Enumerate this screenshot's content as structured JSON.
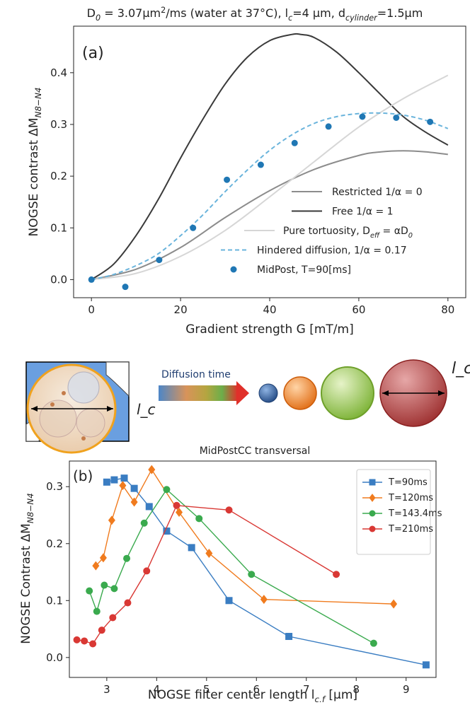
{
  "chart_data": [
    {
      "id": "a",
      "type": "line",
      "title": "D₀ = 3.07μm²/ms (water at 37°C), l_c=4 μm, d_cylinder=1.5μm",
      "panel_label": "(a)",
      "xlabel": "Gradient strength G [mT/m]",
      "ylabel": "NOGSE contrast ΔM_{N8−N4}",
      "xlim": [
        -4,
        84
      ],
      "ylim": [
        -0.035,
        0.49
      ],
      "xticks": [
        "0",
        "20",
        "40",
        "60",
        "80"
      ],
      "yticks": [
        "0.0",
        "0.1",
        "0.2",
        "0.3",
        "0.4"
      ],
      "legend_position": "lower right",
      "series": [
        {
          "name": "Restricted 1/α = 0",
          "color": "#8c8c8c",
          "style": "solid",
          "x": [
            0,
            10,
            20,
            30,
            40,
            50,
            60,
            65,
            70,
            75,
            80
          ],
          "y": [
            0,
            0.02,
            0.062,
            0.12,
            0.172,
            0.213,
            0.24,
            0.247,
            0.249,
            0.247,
            0.242
          ]
        },
        {
          "name": "Free 1/α = 1",
          "color": "#3a3a3a",
          "style": "solid",
          "x": [
            0,
            5,
            10,
            15,
            20,
            25,
            30,
            35,
            40,
            45,
            47,
            50,
            55,
            60,
            65,
            70,
            75,
            80
          ],
          "y": [
            0,
            0.03,
            0.085,
            0.155,
            0.235,
            0.31,
            0.378,
            0.43,
            0.462,
            0.474,
            0.474,
            0.468,
            0.44,
            0.4,
            0.357,
            0.315,
            0.285,
            0.26
          ]
        },
        {
          "name": "Pure tortuosity, D_eff = αD₀",
          "color": "#d6d6d6",
          "style": "solid",
          "x": [
            0,
            10,
            20,
            30,
            40,
            50,
            60,
            70,
            80
          ],
          "y": [
            0,
            0.012,
            0.045,
            0.095,
            0.16,
            0.228,
            0.295,
            0.35,
            0.395
          ]
        },
        {
          "name": "Hindered diffusion, 1/α = 0.17",
          "color": "#6ab4dc",
          "style": "dashed",
          "x": [
            0,
            5,
            10,
            15,
            20,
            25,
            30,
            35,
            40,
            45,
            50,
            55,
            60,
            65,
            70,
            75,
            80
          ],
          "y": [
            0,
            0.01,
            0.027,
            0.05,
            0.085,
            0.125,
            0.17,
            0.212,
            0.25,
            0.28,
            0.302,
            0.315,
            0.321,
            0.322,
            0.318,
            0.308,
            0.292
          ]
        },
        {
          "name": "MidPost, T=90[ms]",
          "color": "#1f77b4",
          "style": "markers",
          "x": [
            0,
            7.6,
            15.2,
            22.8,
            30.4,
            38,
            45.6,
            53.2,
            60.8,
            68.4,
            76
          ],
          "y": [
            0,
            -0.014,
            0.038,
            0.1,
            0.193,
            0.222,
            0.264,
            0.296,
            0.315,
            0.313,
            0.305
          ]
        }
      ]
    },
    {
      "id": "b",
      "type": "line",
      "title": "MidPostCC transversal",
      "panel_label": "(b)",
      "xlabel": "NOGSE filter center length l_c,f [μm]",
      "ylabel": "NOGSE Contrast ΔM_{N8−N4}",
      "xlim": [
        2.25,
        9.6
      ],
      "ylim": [
        -0.035,
        0.345
      ],
      "xticks": [
        "3",
        "4",
        "5",
        "6",
        "7",
        "8",
        "9"
      ],
      "yticks": [
        "0.0",
        "0.1",
        "0.2",
        "0.3"
      ],
      "legend_position": "upper right",
      "series": [
        {
          "name": "T=90ms",
          "color": "#3a7dc2",
          "marker": "square",
          "x": [
            3.0,
            3.15,
            3.35,
            3.55,
            3.85,
            4.2,
            4.7,
            5.45,
            6.65,
            9.4
          ],
          "y": [
            0.308,
            0.312,
            0.315,
            0.297,
            0.265,
            0.222,
            0.193,
            0.1,
            0.037,
            -0.013
          ]
        },
        {
          "name": "T=120ms",
          "color": "#f07b1e",
          "marker": "diamond",
          "x": [
            2.78,
            2.93,
            3.1,
            3.32,
            3.55,
            3.9,
            4.45,
            5.05,
            6.15,
            8.75
          ],
          "y": [
            0.161,
            0.175,
            0.241,
            0.302,
            0.273,
            0.33,
            0.255,
            0.183,
            0.102,
            0.094
          ]
        },
        {
          "name": "T=143.4ms",
          "color": "#3aaa4e",
          "marker": "circle",
          "x": [
            2.65,
            2.8,
            2.95,
            3.15,
            3.4,
            3.75,
            4.2,
            4.85,
            5.9,
            8.35
          ],
          "y": [
            0.117,
            0.081,
            0.127,
            0.121,
            0.174,
            0.236,
            0.295,
            0.244,
            0.146,
            0.025
          ]
        },
        {
          "name": "T=210ms",
          "color": "#d93834",
          "marker": "circle",
          "x": [
            2.4,
            2.55,
            2.72,
            2.9,
            3.12,
            3.42,
            3.8,
            4.4,
            5.45,
            7.6
          ],
          "y": [
            0.031,
            0.029,
            0.024,
            0.048,
            0.07,
            0.096,
            0.152,
            0.267,
            0.259,
            0.146
          ]
        }
      ]
    }
  ],
  "illustration": {
    "diffusion_time_label": "Diffusion time",
    "lc_label": "l_c",
    "lc_label_2": "l_c",
    "sphere_colors": [
      "#2f5a96",
      "#ee8220",
      "#8fbf3f",
      "#b23c3c"
    ]
  }
}
